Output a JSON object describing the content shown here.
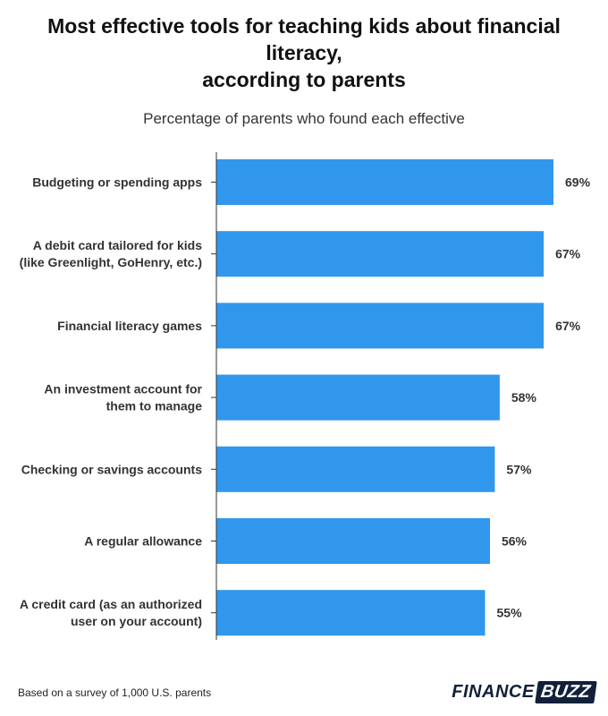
{
  "title": "Most effective tools for teaching kids about financial literacy,\naccording to parents",
  "subtitle": "Percentage of parents who found each effective",
  "footnote": "Based on a survey of 1,000 U.S. parents",
  "logo": {
    "part1": "FINANCE",
    "part2": "BUZZ"
  },
  "colors": {
    "bar": "#3197ec",
    "axis": "#333333",
    "label": "#333333"
  },
  "chart_data": {
    "type": "bar",
    "orientation": "horizontal",
    "categories": [
      [
        "Budgeting or spending apps"
      ],
      [
        "A debit card tailored for kids",
        "(like Greenlight, GoHenry, etc.)"
      ],
      [
        "Financial literacy games"
      ],
      [
        "An investment account for",
        "them to manage"
      ],
      [
        "Checking or savings accounts"
      ],
      [
        "A regular allowance"
      ],
      [
        "A credit card (as an authorized",
        "user on your account)"
      ]
    ],
    "values": [
      69,
      67,
      67,
      58,
      57,
      56,
      55
    ],
    "value_labels": [
      "69%",
      "67%",
      "67%",
      "58%",
      "57%",
      "56%",
      "55%"
    ],
    "title": "Most effective tools for teaching kids about financial literacy, according to parents",
    "subtitle": "Percentage of parents who found each effective",
    "xlim": [
      0,
      69
    ],
    "unit": "%",
    "grid": false
  }
}
